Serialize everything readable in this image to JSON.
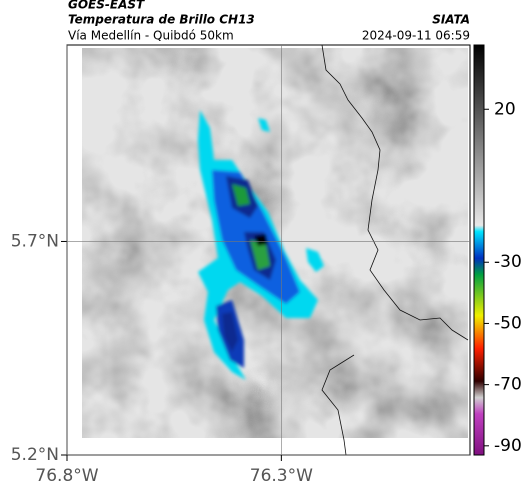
{
  "header": {
    "source": "GOES-EAST",
    "title": "Temperatura de Brillo CH13",
    "org": "SIATA",
    "subtitle": "Vía Medellín - Quibdó 50km",
    "datetime": "2024-09-11 06:59"
  },
  "map": {
    "lat_range": [
      5.2,
      6.16
    ],
    "lon_range": [
      -76.8,
      -75.86
    ],
    "lat_ticks": [
      {
        "value": 5.7,
        "label": "5.7°N"
      },
      {
        "value": 5.2,
        "label": "5.2°N"
      }
    ],
    "lon_ticks": [
      {
        "value": -76.8,
        "label": "76.8°W"
      },
      {
        "value": -76.3,
        "label": "76.3°W"
      }
    ]
  },
  "colorbar": {
    "range": [
      41,
      -93
    ],
    "ticks": [
      20,
      -30,
      -50,
      -70,
      -90
    ]
  }
}
